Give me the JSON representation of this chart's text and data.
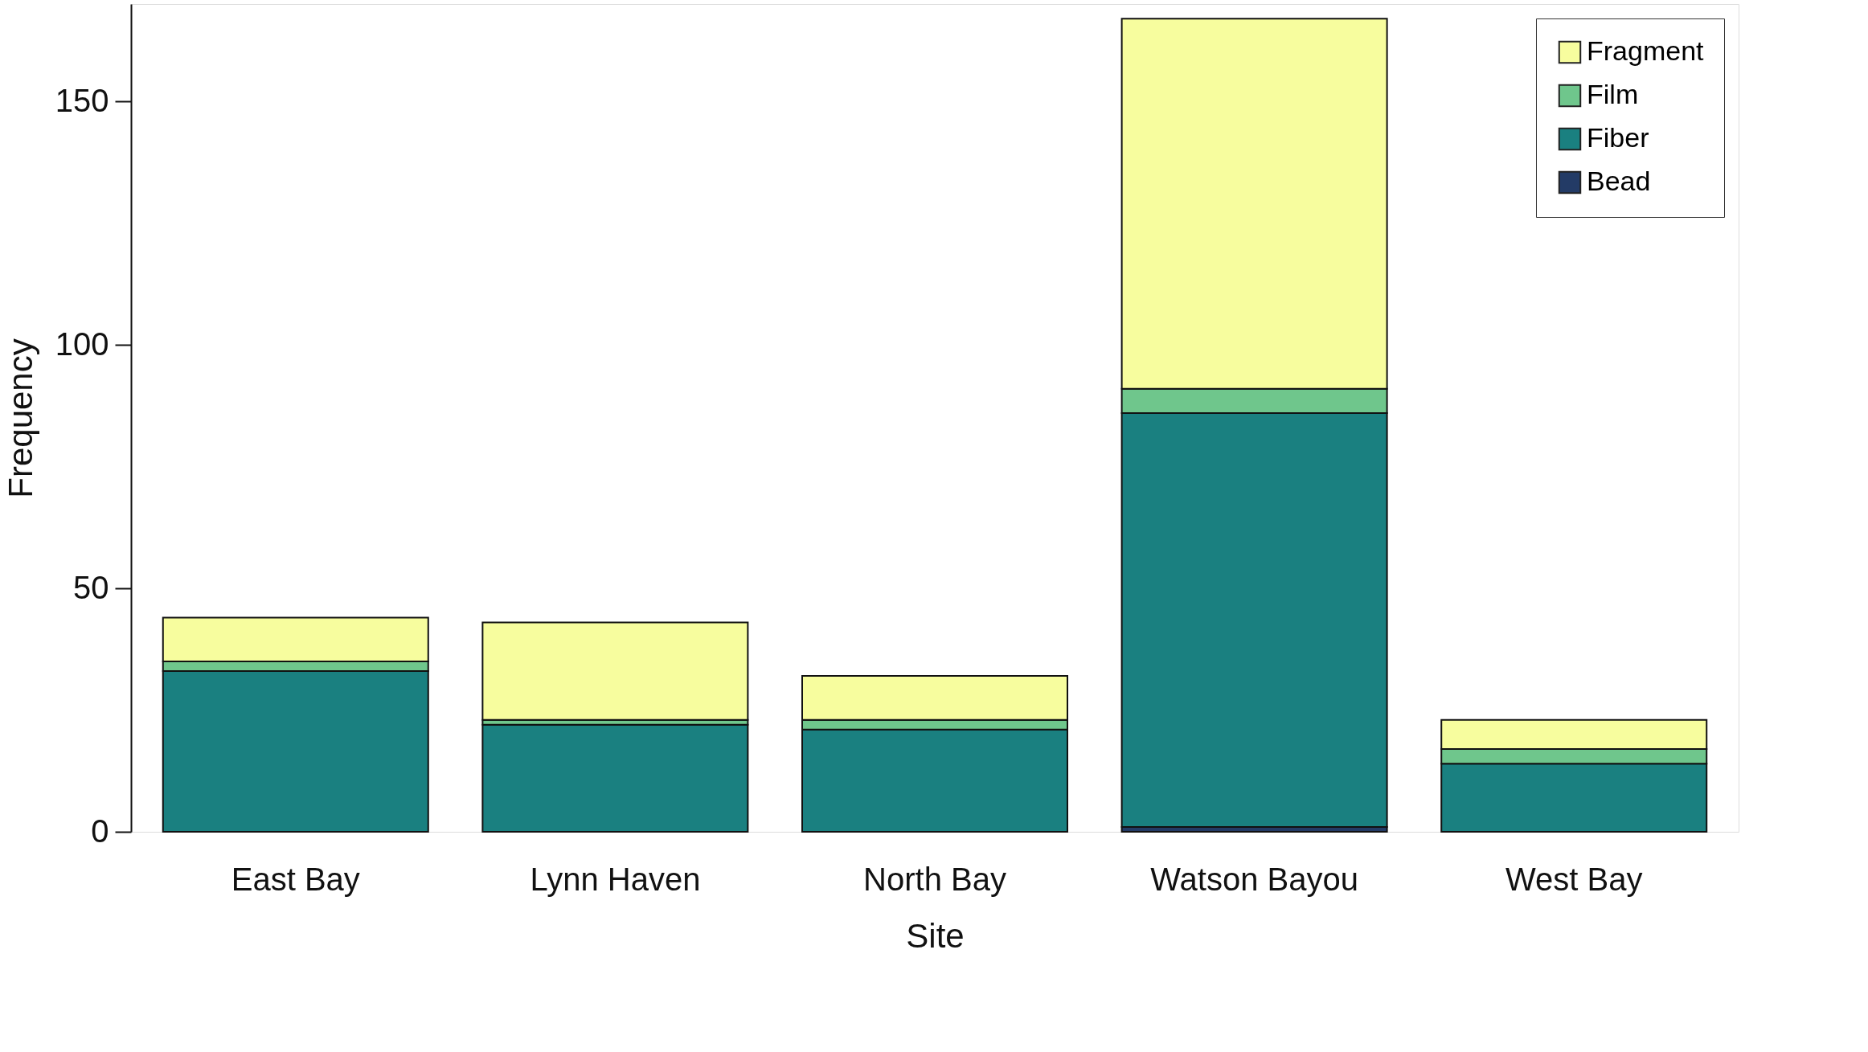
{
  "chart_data": {
    "type": "bar",
    "stacked": true,
    "xlabel": "Site",
    "ylabel": "Frequency",
    "categories": [
      "East Bay",
      "Lynn Haven",
      "North Bay",
      "Watson Bayou",
      "West Bay"
    ],
    "series": [
      {
        "name": "Bead",
        "color": "#233b66",
        "values": [
          0,
          0,
          0,
          1,
          0
        ]
      },
      {
        "name": "Fiber",
        "color": "#1a8080",
        "values": [
          33,
          22,
          21,
          85,
          14
        ]
      },
      {
        "name": "Film",
        "color": "#6fc68c",
        "values": [
          2,
          1,
          2,
          5,
          3
        ]
      },
      {
        "name": "Fragment",
        "color": "#f7fd9e",
        "values": [
          9,
          20,
          9,
          76,
          6
        ]
      }
    ],
    "ylim": [
      0,
      170
    ],
    "yticks": [
      0,
      50,
      100,
      150
    ],
    "grid": false,
    "legend": "top right"
  }
}
